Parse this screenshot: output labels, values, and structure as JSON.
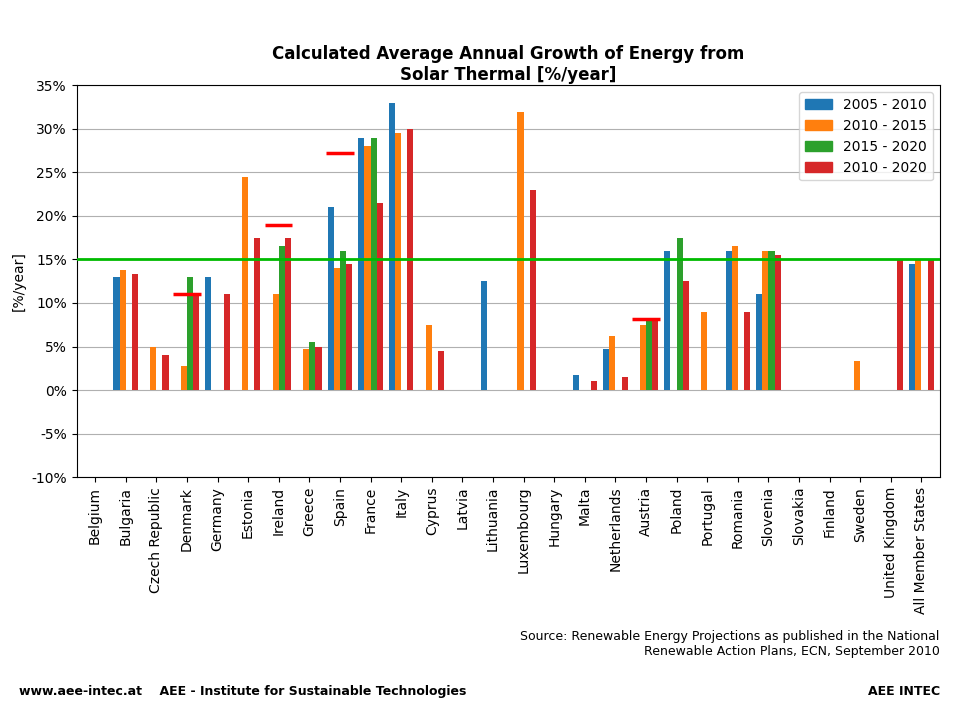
{
  "chart_data": {
    "type": "bar",
    "title": "Calculated Average Annual Growth of Energy from\nSolar Thermal [%/year]",
    "y_label": "[%/year]",
    "categories": [
      "Belgium",
      "Bulgaria",
      "Czech Republic",
      "Denmark",
      "Germany",
      "Estonia",
      "Ireland",
      "Greece",
      "Spain",
      "France",
      "Italy",
      "Cyprus",
      "Latvia",
      "Lithuania",
      "Luxembourg",
      "Hungary",
      "Malta",
      "Netherlands",
      "Austria",
      "Poland",
      "Portugal",
      "Romania",
      "Slovenia",
      "Slovakia",
      "Finland",
      "Sweden",
      "United Kingdom",
      "All Member States"
    ],
    "series": [
      {
        "name": "2005 - 2010",
        "values": [
          null,
          13.0,
          null,
          null,
          13.0,
          null,
          null,
          null,
          21.0,
          29.0,
          33.0,
          null,
          null,
          12.5,
          null,
          null,
          1.7,
          4.7,
          null,
          16.0,
          null,
          16.0,
          11.0,
          null,
          null,
          null,
          null,
          14.5
        ]
      },
      {
        "name": "2010 - 2015",
        "values": [
          null,
          13.8,
          5.0,
          2.8,
          null,
          24.5,
          11.0,
          4.7,
          14.0,
          28.0,
          29.5,
          7.5,
          null,
          null,
          32.0,
          null,
          null,
          6.2,
          7.5,
          null,
          9.0,
          16.5,
          16.0,
          null,
          null,
          3.3,
          null,
          15.0
        ]
      },
      {
        "name": "2015 - 2020",
        "values": [
          null,
          null,
          null,
          13.0,
          null,
          null,
          16.5,
          5.5,
          16.0,
          29.0,
          null,
          null,
          null,
          null,
          null,
          null,
          null,
          null,
          8.0,
          17.5,
          null,
          null,
          16.0,
          null,
          null,
          null,
          null,
          null
        ]
      },
      {
        "name": "2010 - 2020",
        "values": [
          null,
          13.3,
          4.0,
          11.0,
          11.0,
          17.5,
          17.5,
          5.0,
          14.5,
          21.5,
          30.0,
          4.5,
          null,
          null,
          23.0,
          null,
          1.0,
          1.5,
          8.2,
          12.5,
          null,
          9.0,
          15.5,
          null,
          null,
          null,
          15.0,
          15.0
        ]
      }
    ],
    "reference_line": {
      "value": 15.0,
      "color": "#00bb00"
    },
    "markers": {
      "color": "red",
      "points": [
        {
          "category": "Denmark",
          "value": 11.0
        },
        {
          "category": "Ireland",
          "value": 19.0
        },
        {
          "category": "Spain",
          "value": 27.2
        },
        {
          "category": "Austria",
          "value": 8.2
        }
      ]
    },
    "ylim": [
      -10,
      35
    ],
    "yticks": [
      {
        "value": -10,
        "label": "-10%"
      },
      {
        "value": -5,
        "label": "-5%"
      },
      {
        "value": 0,
        "label": "0%"
      },
      {
        "value": 5,
        "label": "5%"
      },
      {
        "value": 10,
        "label": "10%"
      },
      {
        "value": 15,
        "label": "15%"
      },
      {
        "value": 20,
        "label": "20%"
      },
      {
        "value": 25,
        "label": "25%"
      },
      {
        "value": 30,
        "label": "30%"
      },
      {
        "value": 35,
        "label": "35%"
      }
    ],
    "grid": true,
    "legend": "upper right",
    "annotations": [
      "Source: Renewable Energy Projections as published in the National\nRenewable Action Plans, ECN, September 2010",
      "www.aee-intec.at    AEE - Institute for Sustainable Technologies",
      "AEE INTEC"
    ]
  }
}
